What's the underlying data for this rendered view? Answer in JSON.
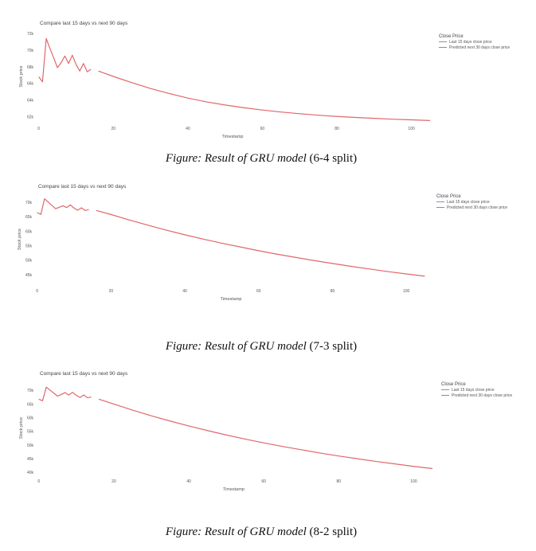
{
  "chart_data": [
    {
      "type": "line",
      "title": "Compare last 15 days vs next 90 days",
      "xlabel": "Timestamp",
      "ylabel": "Stock price",
      "xticks": [
        0,
        20,
        40,
        60,
        80,
        100
      ],
      "xtick_labels": [
        "0",
        "20",
        "40",
        "60",
        "80",
        "100"
      ],
      "xlim": [
        -1,
        105
      ],
      "yticks": [
        62000,
        64000,
        66000,
        68000,
        70000,
        72000
      ],
      "ytick_labels": [
        "62k",
        "64k",
        "66k",
        "68k",
        "70k",
        "72k"
      ],
      "ylim": [
        61500,
        72200
      ],
      "grid": false,
      "legend": {
        "title": "Close Price",
        "position": "top-right",
        "entries": [
          "Last 15 days close price",
          "Predicted next 30 days close price"
        ]
      },
      "series": [
        {
          "name": "Last 15 days close price",
          "color": "#e0676b",
          "x": [
            0,
            1,
            2,
            3,
            4,
            5,
            6,
            7,
            8,
            9,
            10,
            11,
            12,
            13,
            14
          ],
          "y": [
            66800,
            66200,
            71400,
            70200,
            69100,
            67900,
            68500,
            69300,
            68400,
            69400,
            68300,
            67500,
            68400,
            67400,
            67700
          ]
        },
        {
          "name": "Predicted next 30 days close price",
          "color": "#e0676b",
          "x": [
            16,
            20,
            25,
            30,
            35,
            40,
            45,
            50,
            55,
            60,
            65,
            70,
            75,
            80,
            85,
            90,
            95,
            100,
            105
          ],
          "y": [
            67500,
            66850,
            66100,
            65400,
            64800,
            64250,
            63800,
            63420,
            63100,
            62820,
            62580,
            62380,
            62200,
            62050,
            61930,
            61820,
            61720,
            61640,
            61560
          ]
        }
      ]
    },
    {
      "type": "line",
      "title": "Compare last 15 days vs next 90 days",
      "xlabel": "Timestamp",
      "ylabel": "Stock price",
      "xticks": [
        0,
        20,
        40,
        60,
        80,
        100
      ],
      "xtick_labels": [
        "0",
        "20",
        "40",
        "60",
        "80",
        "100"
      ],
      "xlim": [
        -1,
        106
      ],
      "yticks": [
        45000,
        50000,
        55000,
        60000,
        65000,
        70000
      ],
      "ytick_labels": [
        "45k",
        "50k",
        "55k",
        "60k",
        "65k",
        "70k"
      ],
      "ylim": [
        42000,
        72500
      ],
      "grid": false,
      "legend": {
        "title": "Close Price",
        "position": "top-right",
        "entries": [
          "Last 15 days close price",
          "Predicted next 30 days close price"
        ]
      },
      "series": [
        {
          "name": "Last 15 days close price",
          "color": "#e0676b",
          "x": [
            0,
            1,
            2,
            3,
            4,
            5,
            6,
            7,
            8,
            9,
            10,
            11,
            12,
            13,
            14
          ],
          "y": [
            66500,
            65800,
            71200,
            70100,
            68900,
            67800,
            68300,
            68800,
            68200,
            69100,
            68000,
            67300,
            68100,
            67200,
            67500
          ]
        },
        {
          "name": "Predicted next 30 days close price",
          "color": "#e0676b",
          "x": [
            16,
            20,
            25,
            30,
            35,
            40,
            45,
            50,
            55,
            60,
            65,
            70,
            75,
            80,
            85,
            90,
            95,
            100,
            105
          ],
          "y": [
            67200,
            65800,
            63900,
            62100,
            60400,
            58800,
            57300,
            55900,
            54600,
            53300,
            52100,
            51000,
            49900,
            48900,
            47900,
            47000,
            46100,
            45300,
            44500
          ]
        }
      ]
    },
    {
      "type": "line",
      "title": "Compare last 15 days vs next 90 days",
      "xlabel": "Timestamp",
      "ylabel": "Stock price",
      "xticks": [
        0,
        20,
        40,
        60,
        80,
        100
      ],
      "xtick_labels": [
        "0",
        "20",
        "40",
        "60",
        "80",
        "100"
      ],
      "xlim": [
        -1,
        105
      ],
      "yticks": [
        40000,
        45000,
        50000,
        55000,
        60000,
        65000,
        70000
      ],
      "ytick_labels": [
        "40k",
        "45k",
        "50k",
        "55k",
        "60k",
        "65k",
        "70k"
      ],
      "ylim": [
        39500,
        73000
      ],
      "grid": false,
      "legend": {
        "title": "Close Price",
        "position": "top-right",
        "entries": [
          "Last 15 days close price",
          "Predicted next 30 days close price"
        ]
      },
      "series": [
        {
          "name": "Last 15 days close price",
          "color": "#e0676b",
          "x": [
            0,
            1,
            2,
            3,
            4,
            5,
            6,
            7,
            8,
            9,
            10,
            11,
            12,
            13,
            14
          ],
          "y": [
            66800,
            66200,
            71200,
            70100,
            69000,
            67900,
            68500,
            69200,
            68300,
            69300,
            68200,
            67400,
            68300,
            67300,
            67600
          ]
        },
        {
          "name": "Predicted next 30 days close price",
          "color": "#e0676b",
          "x": [
            16,
            20,
            25,
            30,
            35,
            40,
            45,
            50,
            55,
            60,
            65,
            70,
            75,
            80,
            85,
            90,
            95,
            100,
            105
          ],
          "y": [
            66800,
            65000,
            62800,
            60700,
            58800,
            57000,
            55300,
            53700,
            52200,
            50800,
            49500,
            48300,
            47100,
            46000,
            45000,
            44000,
            43100,
            42200,
            41400
          ]
        }
      ]
    }
  ],
  "captions": [
    {
      "italic": "Figure: Result of GRU model",
      "suffix": " (6-4 split)"
    },
    {
      "italic": "Figure: Result of GRU model",
      "suffix": " (7-3 split)"
    },
    {
      "italic": "Figure: Result of GRU model",
      "suffix": " (8-2 split)"
    }
  ]
}
